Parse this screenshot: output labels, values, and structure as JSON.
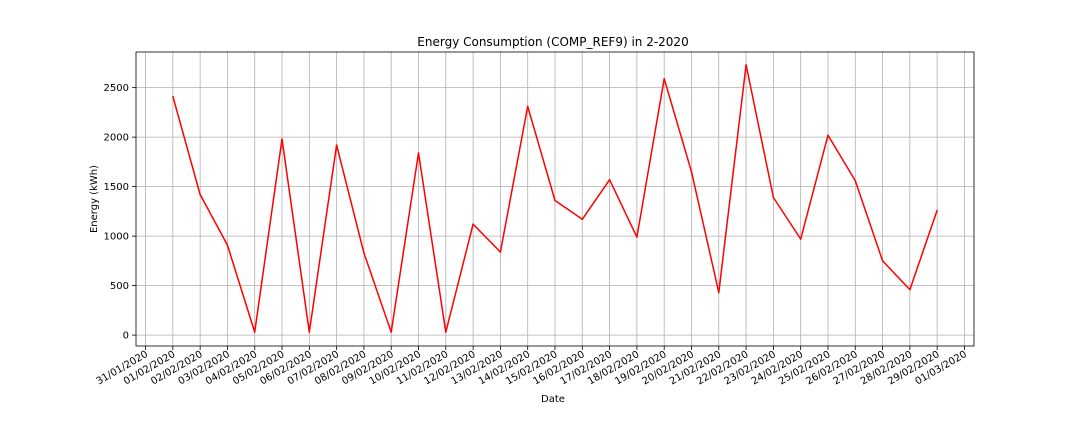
{
  "chart_data": {
    "type": "line",
    "title": "Energy Consumption (COMP_REF9) in 2-2020",
    "xlabel": "Date",
    "ylabel": "Energy (kWh)",
    "x_ticks": [
      "31/01/2020",
      "01/02/2020",
      "02/02/2020",
      "03/02/2020",
      "04/02/2020",
      "05/02/2020",
      "06/02/2020",
      "07/02/2020",
      "08/02/2020",
      "09/02/2020",
      "10/02/2020",
      "11/02/2020",
      "12/02/2020",
      "13/02/2020",
      "14/02/2020",
      "15/02/2020",
      "16/02/2020",
      "17/02/2020",
      "18/02/2020",
      "19/02/2020",
      "20/02/2020",
      "21/02/2020",
      "22/02/2020",
      "23/02/2020",
      "24/02/2020",
      "25/02/2020",
      "26/02/2020",
      "27/02/2020",
      "28/02/2020",
      "29/02/2020",
      "01/03/2020"
    ],
    "x": [
      "01/02/2020",
      "02/02/2020",
      "03/02/2020",
      "04/02/2020",
      "05/02/2020",
      "06/02/2020",
      "07/02/2020",
      "08/02/2020",
      "09/02/2020",
      "10/02/2020",
      "11/02/2020",
      "12/02/2020",
      "13/02/2020",
      "14/02/2020",
      "15/02/2020",
      "16/02/2020",
      "17/02/2020",
      "18/02/2020",
      "19/02/2020",
      "20/02/2020",
      "21/02/2020",
      "22/02/2020",
      "23/02/2020",
      "24/02/2020",
      "25/02/2020",
      "26/02/2020",
      "27/02/2020",
      "28/02/2020",
      "29/02/2020"
    ],
    "values": [
      2410,
      1420,
      910,
      30,
      1980,
      30,
      1920,
      830,
      30,
      1840,
      30,
      1120,
      840,
      2310,
      1360,
      1170,
      1570,
      990,
      2590,
      1650,
      430,
      2730,
      1390,
      970,
      2020,
      1560,
      750,
      460,
      1260
    ],
    "y_ticks": [
      0,
      500,
      1000,
      1500,
      2000,
      2500
    ],
    "ylim": [
      -110,
      2860
    ],
    "grid": true,
    "line_color": "#ff0000"
  }
}
